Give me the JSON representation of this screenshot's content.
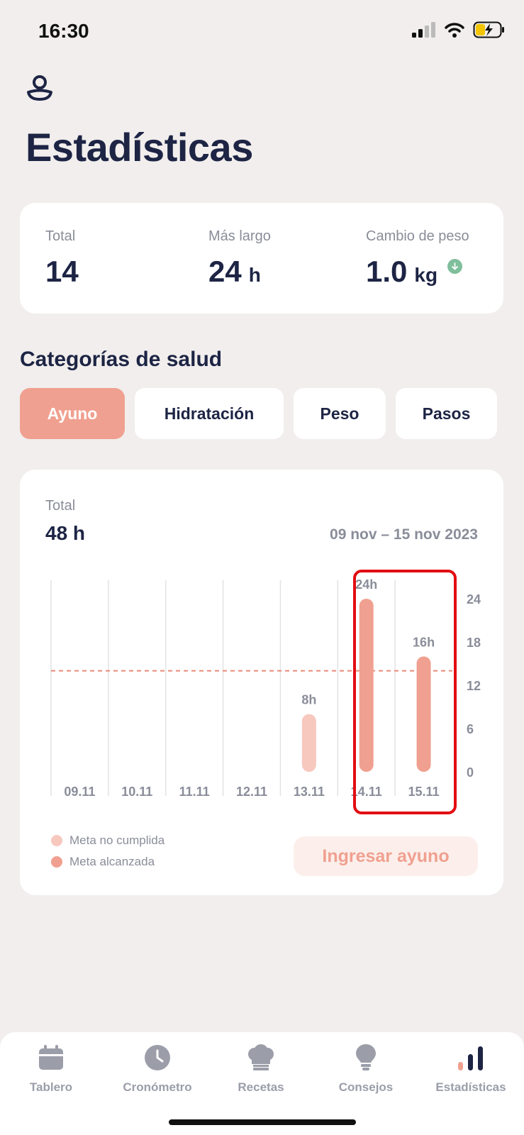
{
  "status_bar": {
    "time": "16:30"
  },
  "page": {
    "title": "Estadísticas"
  },
  "summary": [
    {
      "label": "Total",
      "value": "14",
      "unit": ""
    },
    {
      "label": "Más largo",
      "value": "24",
      "unit": "h"
    },
    {
      "label": "Cambio de peso",
      "value": "1.0",
      "unit": "kg"
    }
  ],
  "section_title": "Categorías de salud",
  "tabs": [
    {
      "label": "Ayuno",
      "active": true
    },
    {
      "label": "Hidratación",
      "active": false
    },
    {
      "label": "Peso",
      "active": false
    },
    {
      "label": "Pasos",
      "active": false
    }
  ],
  "chart_card": {
    "total_label": "Total",
    "total_value": "48 h",
    "date_range": "09 nov – 15 nov 2023",
    "cta_label": "Ingresar ayuno",
    "legend": [
      {
        "label": "Meta no cumplida",
        "color": "#f7c8be"
      },
      {
        "label": "Meta alcanzada",
        "color": "#f0a090"
      }
    ]
  },
  "chart_data": {
    "type": "bar",
    "categories": [
      "09.11",
      "10.11",
      "11.11",
      "12.11",
      "13.11",
      "14.11",
      "15.11"
    ],
    "values": [
      0,
      0,
      0,
      0,
      8,
      24,
      16
    ],
    "data_labels": [
      "",
      "",
      "",
      "",
      "8h",
      "24h",
      "16h"
    ],
    "goal_met": [
      false,
      false,
      false,
      false,
      false,
      true,
      true
    ],
    "goal_line": 14,
    "y_ticks": [
      0,
      6,
      12,
      18,
      24
    ],
    "ylim": [
      0,
      24
    ],
    "y_axis_side": "right",
    "goal_line_style": "dashed",
    "grid": "vertical",
    "colors": {
      "goal_met": "#f0a090",
      "goal_not_met": "#f7c8be",
      "goal_line": "#e88a78",
      "grid": "#e4e2e2"
    }
  },
  "nav": [
    {
      "label": "Tablero",
      "icon": "calendar-icon",
      "active": false
    },
    {
      "label": "Cronómetro",
      "icon": "clock-icon",
      "active": false
    },
    {
      "label": "Recetas",
      "icon": "chef-hat-icon",
      "active": false
    },
    {
      "label": "Consejos",
      "icon": "lightbulb-icon",
      "active": false
    },
    {
      "label": "Estadísticas",
      "icon": "bar-chart-icon",
      "active": true
    }
  ]
}
